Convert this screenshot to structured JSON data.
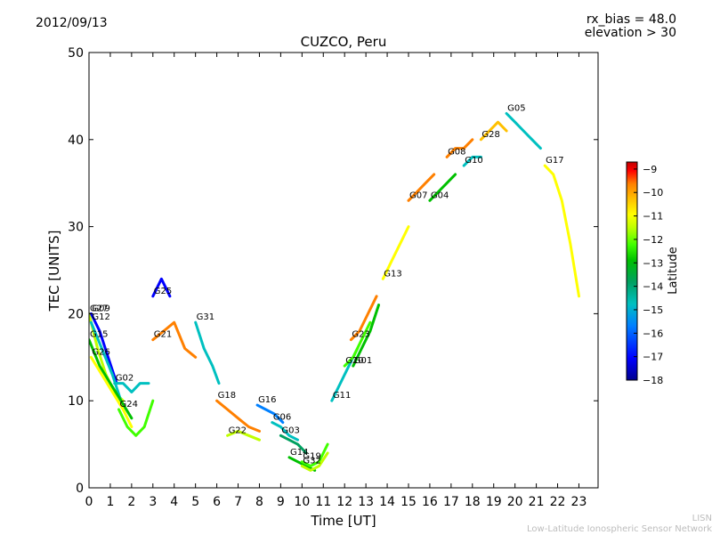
{
  "header": {
    "date": "2012/09/13",
    "rx_bias": "rx_bias = 48.0",
    "elevation": "elevation > 30"
  },
  "footer": {
    "line1": "LISN",
    "line2": "Low-Latitude Ionospheric Sensor Network"
  },
  "colors": {
    "scale": [
      "#00008f",
      "#0000ff",
      "#0080ff",
      "#00c0c0",
      "#00a060",
      "#00c000",
      "#40ff00",
      "#c0ff00",
      "#ffff00",
      "#ffc000",
      "#ff8000",
      "#ff0000",
      "#c00000"
    ]
  },
  "chart_data": {
    "type": "line",
    "title": "CUZCO, Peru",
    "xlabel": "Time [UT]",
    "ylabel": "TEC [UNITS]",
    "xlim": [
      0,
      23.9
    ],
    "ylim": [
      0,
      50
    ],
    "xticks": [
      0,
      1,
      2,
      3,
      4,
      5,
      6,
      7,
      8,
      9,
      10,
      11,
      12,
      13,
      14,
      15,
      16,
      17,
      18,
      19,
      20,
      21,
      22,
      23
    ],
    "yticks": [
      0,
      10,
      20,
      30,
      40,
      50
    ],
    "colorbar": {
      "label": "Latitude",
      "range": [
        -18,
        -8.7
      ],
      "ticks": [
        -9,
        -10,
        -11,
        -12,
        -13,
        -14,
        -15,
        -16,
        -17,
        -18
      ]
    },
    "series": [
      {
        "name": "G27",
        "lat": -12.5,
        "x": [
          0,
          0.4,
          0.8,
          1.2,
          1.6
        ],
        "y": [
          20,
          16,
          13,
          11,
          10
        ]
      },
      {
        "name": "G09",
        "lat": -17.5,
        "x": [
          0.1,
          0.5,
          0.9,
          1.3
        ],
        "y": [
          20,
          18,
          15,
          12
        ]
      },
      {
        "name": "G12",
        "lat": -16,
        "x": [
          0.1,
          0.6,
          1.1,
          1.5
        ],
        "y": [
          19,
          16,
          13,
          10
        ]
      },
      {
        "name": "G15",
        "lat": -14,
        "x": [
          0,
          0.5,
          1,
          1.5,
          2
        ],
        "y": [
          17,
          14,
          12,
          10,
          8
        ]
      },
      {
        "name": "G26",
        "lat": -12,
        "x": [
          0.1,
          0.6,
          1.1,
          1.6,
          2
        ],
        "y": [
          15,
          13,
          11,
          9,
          7
        ]
      },
      {
        "name": "G02",
        "lat": -15.5,
        "x": [
          1.2,
          1.6,
          2,
          2.4,
          2.8
        ],
        "y": [
          12,
          12,
          11,
          12,
          12
        ]
      },
      {
        "name": "G24",
        "lat": -13,
        "x": [
          1.4,
          1.8,
          2.2,
          2.6,
          3
        ],
        "y": [
          9,
          7,
          6,
          7,
          10
        ]
      },
      {
        "name": "G25",
        "lat": -17.5,
        "x": [
          3,
          3.4,
          3.8
        ],
        "y": [
          22,
          24,
          22
        ]
      },
      {
        "name": "G21",
        "lat": -10,
        "x": [
          3,
          3.5,
          4,
          4.5,
          5
        ],
        "y": [
          17,
          18,
          19,
          16,
          15
        ]
      },
      {
        "name": "G31",
        "lat": -16,
        "x": [
          5,
          5.4,
          5.8,
          6.1
        ],
        "y": [
          19,
          16,
          14,
          12
        ]
      },
      {
        "name": "G18",
        "lat": -10.5,
        "x": [
          6,
          6.5,
          7,
          7.5,
          8
        ],
        "y": [
          10,
          9,
          8,
          7,
          6.5
        ]
      },
      {
        "name": "G22",
        "lat": -12.5,
        "x": [
          6.5,
          7,
          7.5,
          8
        ],
        "y": [
          6,
          6.5,
          6,
          5.5
        ]
      },
      {
        "name": "G16",
        "lat": -16.5,
        "x": [
          7.9,
          8.3,
          8.7,
          9.1
        ],
        "y": [
          9.5,
          9,
          8.5,
          7.5
        ]
      },
      {
        "name": "G06",
        "lat": -16,
        "x": [
          8.6,
          9,
          9.4,
          9.8
        ],
        "y": [
          7.5,
          7,
          6,
          5.5
        ]
      },
      {
        "name": "G03",
        "lat": -15,
        "x": [
          9,
          9.4,
          9.8,
          10.2
        ],
        "y": [
          6,
          5.5,
          5,
          4
        ]
      },
      {
        "name": "G14",
        "lat": -14,
        "x": [
          9.4,
          9.8,
          10.2,
          10.6
        ],
        "y": [
          3.5,
          3,
          2.5,
          2
        ]
      },
      {
        "name": "G19",
        "lat": -13,
        "x": [
          10,
          10.4,
          10.8,
          11.2
        ],
        "y": [
          3,
          2.5,
          3,
          5
        ]
      },
      {
        "name": "G32",
        "lat": -12.5,
        "x": [
          10,
          10.4,
          10.8,
          11.2
        ],
        "y": [
          2.5,
          2,
          2.5,
          4
        ]
      },
      {
        "name": "G11",
        "lat": -15.5,
        "x": [
          11.4,
          11.8,
          12.2,
          12.6
        ],
        "y": [
          10,
          12,
          14,
          16
        ]
      },
      {
        "name": "G20",
        "lat": -13.5,
        "x": [
          12,
          12.4,
          12.8,
          13.2
        ],
        "y": [
          14,
          15,
          17,
          19
        ]
      },
      {
        "name": "G01",
        "lat": -14.5,
        "x": [
          12.4,
          12.8,
          13.2,
          13.6
        ],
        "y": [
          14,
          16,
          18,
          21
        ]
      },
      {
        "name": "G23",
        "lat": -10,
        "x": [
          12.3,
          12.7,
          13.1,
          13.5
        ],
        "y": [
          17,
          18,
          20,
          22
        ]
      },
      {
        "name": "G13",
        "lat": -12,
        "x": [
          13.8,
          14.2,
          14.6,
          15
        ],
        "y": [
          24,
          26,
          28,
          30
        ]
      },
      {
        "name": "G07",
        "lat": -10,
        "x": [
          15,
          15.4,
          15.8,
          16.2
        ],
        "y": [
          33,
          34,
          35,
          36
        ]
      },
      {
        "name": "G04",
        "lat": -14.5,
        "x": [
          16,
          16.4,
          16.8,
          17.2
        ],
        "y": [
          33,
          34,
          35,
          36
        ]
      },
      {
        "name": "G08",
        "lat": -10.5,
        "x": [
          16.8,
          17.2,
          17.6,
          18
        ],
        "y": [
          38,
          39,
          39,
          40
        ]
      },
      {
        "name": "G10",
        "lat": -16,
        "x": [
          17.6,
          18,
          18.4
        ],
        "y": [
          37,
          38,
          38
        ]
      },
      {
        "name": "G28",
        "lat": -11,
        "x": [
          18.4,
          18.8,
          19.2,
          19.6
        ],
        "y": [
          40,
          41,
          42,
          41
        ]
      },
      {
        "name": "G05",
        "lat": -16,
        "x": [
          19.6,
          20,
          20.4,
          20.8,
          21.2
        ],
        "y": [
          43,
          42,
          41,
          40,
          39
        ]
      },
      {
        "name": "G17",
        "lat": -12,
        "x": [
          21.4,
          21.8,
          22.2,
          22.6,
          23
        ],
        "y": [
          37,
          36,
          33,
          28,
          22
        ]
      }
    ]
  }
}
